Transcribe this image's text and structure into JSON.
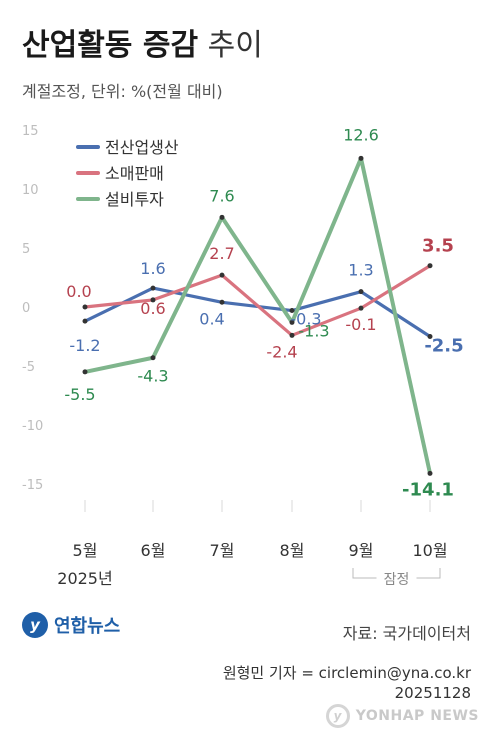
{
  "header": {
    "title_main": "산업활동 증감",
    "title_rest": "추이",
    "subtitle": "계절조정, 단위: %(전월 대비)"
  },
  "chart_data": {
    "type": "line",
    "categories": [
      "5월",
      "6월",
      "7월",
      "8월",
      "9월",
      "10월"
    ],
    "year_label": "2025년",
    "annotation": "잠정",
    "ylim": [
      -15,
      15
    ],
    "yticks": [
      15,
      10,
      5,
      0,
      -5,
      -10,
      -15
    ],
    "grid": false,
    "legend_position": "top-left",
    "series": [
      {
        "name": "전산업생산",
        "color": "#4a6fb0",
        "values": [
          -1.2,
          1.6,
          0.4,
          -0.3,
          1.3,
          -2.5
        ],
        "labels": [
          "-1.2",
          "1.6",
          "0.4",
          "-0.3",
          "1.3",
          "-2.5"
        ]
      },
      {
        "name": "소매판매",
        "color": "#d9737f",
        "label_color": "#b5424f",
        "values": [
          0.0,
          0.6,
          2.7,
          -2.4,
          -0.1,
          3.5
        ],
        "labels": [
          "0.0",
          "0.6",
          "2.7",
          "-2.4",
          "-0.1",
          "3.5"
        ]
      },
      {
        "name": "설비투자",
        "color": "#7fb58c",
        "label_color": "#2e8a50",
        "values": [
          -5.5,
          -4.3,
          7.6,
          -1.3,
          12.6,
          -14.1
        ],
        "labels": [
          "-5.5",
          "-4.3",
          "7.6",
          "-1.3",
          "12.6",
          "-14.1"
        ]
      }
    ]
  },
  "footer": {
    "logo_text": "연합뉴스",
    "logo_mark": "y",
    "source": "자료: 국가데이터처",
    "reporter": "원형민 기자 = circlemin@yna.co.kr",
    "date": "20251128",
    "watermark": "YONHAP NEWS"
  }
}
